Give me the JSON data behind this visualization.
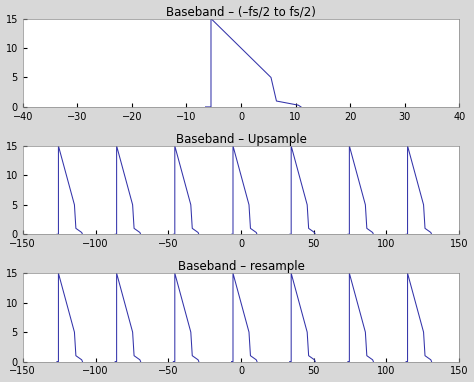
{
  "title1": "Baseband – (–fs/2 to fs/2)",
  "title2": "Baseband – Upsample",
  "title3": "Baseband – resample",
  "line_color": "#3333aa",
  "bg_color": "#d8d8d8",
  "plot_bg": "#ffffff",
  "ylim": [
    0,
    15
  ],
  "yticks": [
    0,
    5,
    10,
    15
  ],
  "plot1_xlim": [
    -40,
    40
  ],
  "plot1_xticks": [
    -40,
    -30,
    -20,
    -10,
    0,
    10,
    20,
    30,
    40
  ],
  "plot23_xlim": [
    -150,
    150
  ],
  "plot23_xticks": [
    -150,
    -100,
    -50,
    0,
    50,
    100,
    150
  ],
  "shape_x": [
    -6.5,
    -5.5,
    -5.5,
    5.5,
    6.5,
    10.5,
    11.0
  ],
  "shape_y": [
    0.0,
    0.0,
    15.0,
    5.0,
    1.0,
    0.3,
    0.0
  ],
  "upsample_offsets": [
    -120,
    -80,
    -40,
    0,
    40,
    80,
    120
  ]
}
